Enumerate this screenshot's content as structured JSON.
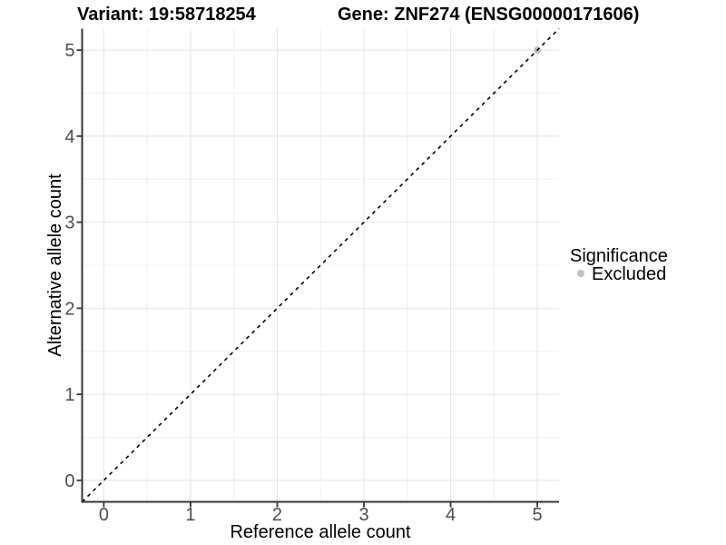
{
  "header": {
    "variant_title": "Variant: 19:58718254",
    "gene_title": "Gene: ZNF274 (ENSG00000171606)"
  },
  "chart_data": {
    "type": "scatter",
    "xlabel": "Reference allele count",
    "ylabel": "Alternative allele count",
    "xlim": [
      -0.25,
      5.25
    ],
    "ylim": [
      -0.25,
      5.25
    ],
    "x_ticks": [
      0,
      1,
      2,
      3,
      4,
      5
    ],
    "y_ticks": [
      0,
      1,
      2,
      3,
      4,
      5
    ],
    "grid": "on",
    "legend_position": "right",
    "series": [
      {
        "name": "Excluded",
        "color": "#c1c1c1",
        "marker": "circle",
        "points": [
          {
            "x": 5,
            "y": 5
          }
        ]
      }
    ],
    "reference_line": {
      "kind": "identity y=x",
      "style": "dashed",
      "color": "#000000",
      "x": [
        -0.25,
        5.25
      ],
      "y": [
        -0.25,
        5.25
      ]
    },
    "legend": {
      "title": "Significance",
      "items": [
        {
          "label": "Excluded",
          "color": "#c1c1c1"
        }
      ]
    }
  },
  "colors": {
    "axis_line": "#343434",
    "tick_mark": "#343434",
    "tick_label": "#4d4d4d",
    "grid_major": "#e4e4e4",
    "grid_minor": "#f0f0f0",
    "background": "#ffffff"
  }
}
